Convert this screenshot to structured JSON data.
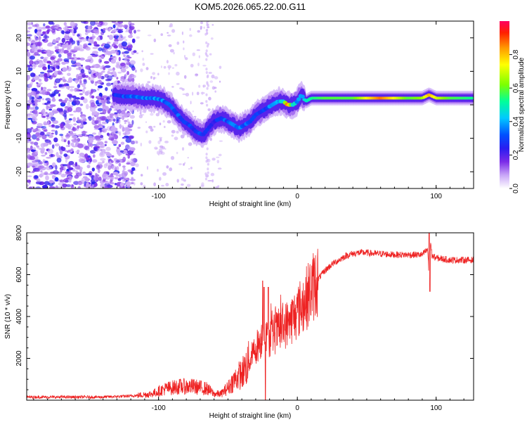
{
  "figure_title": "KOM5.2026.065.22.00.G11",
  "chart_data": [
    {
      "type": "heatmap",
      "name": "spectrogram",
      "xlabel": "Height of straight line (km)",
      "ylabel": "Frequency (Hz)",
      "xlim": [
        -195,
        127
      ],
      "ylim": [
        -25,
        25
      ],
      "xticks": [
        -100,
        0,
        100
      ],
      "xtick_labels": [
        "-100",
        "0",
        "100"
      ],
      "yticks": [
        -20,
        -10,
        0,
        10,
        20
      ],
      "ytick_labels": [
        "-20",
        "-10",
        "0",
        "10",
        "20"
      ],
      "ridge_x": [
        -132,
        -125,
        -118,
        -110,
        -104,
        -98,
        -92,
        -88,
        -82,
        -78,
        -73,
        -68,
        -64,
        -60,
        -55,
        -50,
        -46,
        -42,
        -38,
        -34,
        -30,
        -26,
        -22,
        -18,
        -14,
        -10,
        -7,
        -3,
        0,
        3,
        6,
        10,
        20,
        40,
        60,
        80,
        90,
        95,
        100,
        110,
        127
      ],
      "ridge_freq": [
        3,
        2.5,
        2.5,
        2,
        2,
        1.5,
        0,
        -2,
        -5,
        -6,
        -8,
        -9,
        -7,
        -5,
        -4,
        -5,
        -6,
        -7,
        -6,
        -5,
        -3,
        -2,
        -1,
        0,
        1,
        1,
        0,
        0,
        1,
        3,
        1,
        2,
        2,
        2,
        2,
        2,
        2,
        3,
        2,
        2,
        2
      ],
      "ridge_amplitude": [
        0.3,
        0.35,
        0.35,
        0.4,
        0.4,
        0.4,
        0.35,
        0.35,
        0.35,
        0.35,
        0.3,
        0.35,
        0.3,
        0.3,
        0.35,
        0.35,
        0.4,
        0.4,
        0.35,
        0.35,
        0.3,
        0.3,
        0.35,
        0.4,
        0.45,
        0.5,
        0.9,
        0.5,
        0.4,
        0.45,
        0.5,
        0.55,
        0.6,
        0.6,
        0.85,
        0.6,
        0.65,
        0.8,
        0.7,
        0.6,
        0.55
      ],
      "noise_region_x": [
        -195,
        -125
      ],
      "colorbar": {
        "label": "Normalized spectral amplitude",
        "ticks": [
          0.0,
          0.2,
          0.4,
          0.6,
          0.8
        ],
        "tick_labels": [
          "0.0",
          "0.2",
          "0.4",
          "0.6",
          "0.8"
        ],
        "range": [
          0,
          1
        ],
        "colormap": [
          "#ffffff",
          "#c9a6f7",
          "#7b2be8",
          "#2a1df0",
          "#0050ff",
          "#00c8ff",
          "#00ff9a",
          "#7cff00",
          "#ffff00",
          "#ff9900",
          "#ff2000",
          "#ff0060"
        ]
      }
    },
    {
      "type": "line",
      "name": "snr",
      "xlabel": "Height of straight line (km)",
      "ylabel": "SNR (10 * v/v)",
      "xlim": [
        -195,
        127
      ],
      "ylim": [
        0,
        8000
      ],
      "xticks": [
        -100,
        0,
        100
      ],
      "xtick_labels": [
        "-100",
        "0",
        "100"
      ],
      "yticks": [
        2000,
        4000,
        6000,
        8000
      ],
      "ytick_labels": [
        "2000",
        "4000",
        "6000",
        "8000"
      ],
      "color": "#ee2222",
      "x": [
        -195,
        -170,
        -140,
        -120,
        -105,
        -95,
        -85,
        -75,
        -65,
        -60,
        -55,
        -50,
        -45,
        -40,
        -35,
        -30,
        -27,
        -25,
        -22,
        -18,
        -14,
        -10,
        -5,
        0,
        5,
        10,
        15,
        20,
        25,
        30,
        35,
        40,
        45,
        50,
        55,
        60,
        70,
        80,
        90,
        94,
        95,
        96,
        97,
        100,
        110,
        120,
        127
      ],
      "y": [
        150,
        150,
        150,
        200,
        300,
        550,
        650,
        650,
        550,
        300,
        300,
        600,
        1000,
        1300,
        1800,
        2500,
        2800,
        3000,
        2900,
        3100,
        3300,
        3500,
        3800,
        4200,
        4700,
        5300,
        5800,
        6200,
        6500,
        6700,
        6900,
        7000,
        7050,
        7050,
        7000,
        7000,
        6950,
        6950,
        6950,
        7200,
        5600,
        7600,
        6900,
        6800,
        6700,
        6700,
        6700
      ],
      "spikes": [
        {
          "x": -25,
          "y": 5700
        },
        {
          "x": -23,
          "y": 0
        },
        {
          "x": -24,
          "y": 5400
        },
        {
          "x": -21,
          "y": 5400
        },
        {
          "x": 95,
          "y": 8000
        },
        {
          "x": 95.5,
          "y": 5200
        }
      ]
    }
  ]
}
